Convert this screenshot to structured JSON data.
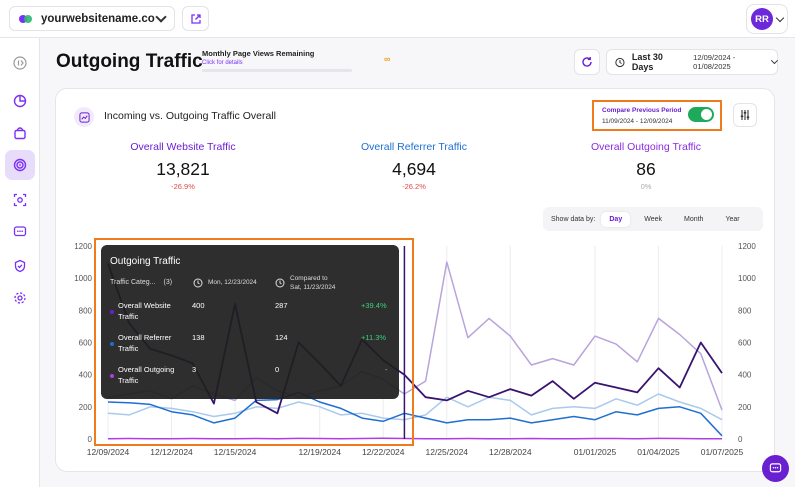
{
  "topbar": {
    "site_name": "yourwebsitename.co",
    "avatar_initials": "RR"
  },
  "header": {
    "title": "Outgoing Traffic",
    "quota_label": "Monthly Page Views Remaining",
    "quota_link": "Click for details",
    "quota_value": "∞",
    "date_label": "Last 30 Days",
    "date_range": "12/09/2024 - 01/08/2025"
  },
  "card": {
    "title": "Incoming vs. Outgoing Traffic Overall",
    "compare_label": "Compare Previous Period",
    "compare_range": "11/09/2024 - 12/09/2024",
    "compare_enabled": true
  },
  "stats": [
    {
      "label": "Overall Website Traffic",
      "value": "13,821",
      "change": "-26.9%",
      "color": "#6a1fd1",
      "change_color": "#e04848"
    },
    {
      "label": "Overall Referrer Traffic",
      "value": "4,694",
      "change": "-26.2%",
      "color": "#1f6fd1",
      "change_color": "#e04848"
    },
    {
      "label": "Overall Outgoing Traffic",
      "value": "86",
      "change": "0%",
      "color": "#8a2be2",
      "change_color": "#aaaaaa"
    }
  ],
  "period": {
    "label": "Show data by:",
    "options": [
      "Day",
      "Week",
      "Month",
      "Year"
    ],
    "selected": "Day"
  },
  "tooltip": {
    "title": "Outgoing Traffic",
    "category_header": "Traffic Categ...",
    "category_count": "(3)",
    "date": "Mon, 12/23/2024",
    "compared_label": "Compared to",
    "compared_date": "Sat, 11/23/2024",
    "rows": [
      {
        "name_line1": "Overall Website",
        "name_line2": "Traffic",
        "current": "400",
        "previous": "287",
        "change": "+39.4%",
        "color": "#6a1fd1"
      },
      {
        "name_line1": "Overall Referrer",
        "name_line2": "Traffic",
        "current": "138",
        "previous": "124",
        "change": "+11.3%",
        "color": "#1f6fd1"
      },
      {
        "name_line1": "Overall Outgoing",
        "name_line2": "Traffic",
        "current": "3",
        "previous": "0",
        "change": "-",
        "color": "#b03de0"
      }
    ]
  },
  "chart_data": {
    "type": "line",
    "ylim": [
      0,
      1200
    ],
    "y_ticks": [
      "0",
      "200",
      "400",
      "600",
      "800",
      "1000",
      "1200"
    ],
    "x_ticks": [
      "12/09/2024",
      "12/12/2024",
      "12/15/2024",
      "12/19/2024",
      "12/22/2024",
      "12/25/2024",
      "12/28/2024",
      "01/01/2025",
      "01/04/2025",
      "01/07/2025"
    ],
    "x": [
      0,
      1,
      2,
      3,
      4,
      5,
      6,
      7,
      8,
      9,
      10,
      11,
      12,
      13,
      14,
      15,
      16,
      17,
      18,
      19,
      20,
      21,
      22,
      23,
      24,
      25,
      26,
      27,
      28,
      29
    ],
    "series": [
      {
        "role": "website",
        "color": "#3a1370",
        "values": [
          1090,
          720,
          560,
          520,
          470,
          220,
          840,
          230,
          160,
          600,
          470,
          330,
          620,
          490,
          400,
          260,
          240,
          300,
          260,
          310,
          270,
          360,
          250,
          350,
          320,
          290,
          440,
          320,
          600,
          410
        ]
      },
      {
        "role": "website-previous",
        "color": "#b9a3dc",
        "values": [
          260,
          280,
          300,
          250,
          330,
          280,
          240,
          380,
          300,
          260,
          300,
          330,
          420,
          370,
          280,
          360,
          1100,
          630,
          750,
          640,
          460,
          500,
          460,
          640,
          590,
          480,
          750,
          650,
          530,
          180
        ]
      },
      {
        "role": "referrer",
        "color": "#1f6fd1",
        "values": [
          230,
          225,
          215,
          170,
          150,
          100,
          130,
          240,
          245,
          290,
          230,
          190,
          130,
          110,
          160,
          130,
          100,
          120,
          120,
          130,
          100,
          120,
          140,
          120,
          170,
          150,
          190,
          200,
          160,
          20
        ]
      },
      {
        "role": "referrer-previous",
        "color": "#a9c9ee",
        "values": [
          160,
          150,
          200,
          190,
          170,
          140,
          160,
          200,
          190,
          230,
          200,
          150,
          160,
          130,
          120,
          150,
          260,
          200,
          260,
          240,
          150,
          190,
          200,
          190,
          250,
          210,
          280,
          230,
          190,
          120
        ]
      },
      {
        "role": "outgoing",
        "color": "#b03de0",
        "values": [
          2,
          3,
          1,
          2,
          3,
          2,
          1,
          3,
          2,
          4,
          3,
          2,
          3,
          5,
          3,
          2,
          2,
          3,
          2,
          1,
          3,
          2,
          2,
          3,
          3,
          2,
          4,
          3,
          2,
          2
        ]
      }
    ]
  }
}
